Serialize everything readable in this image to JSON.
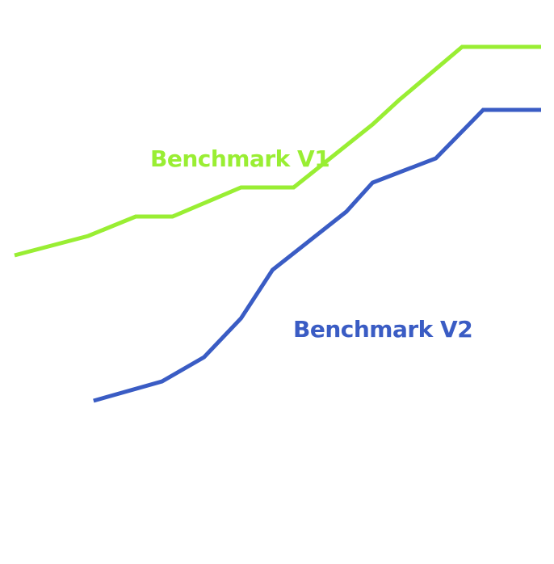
{
  "chart_data": {
    "type": "line",
    "title": "",
    "xlabel": "",
    "ylabel": "",
    "xlim": [
      0,
      100
    ],
    "ylim": [
      0,
      100
    ],
    "grid": false,
    "legend": "inline labels",
    "series": [
      {
        "name": "Benchmark V1",
        "color": "#99ee33",
        "points": [
          [
            0,
            49
          ],
          [
            14,
            53
          ],
          [
            23,
            57
          ],
          [
            30,
            57
          ],
          [
            43,
            63
          ],
          [
            53,
            63
          ],
          [
            68,
            76
          ],
          [
            73,
            81
          ],
          [
            85,
            92
          ],
          [
            100,
            92
          ]
        ]
      },
      {
        "name": "Benchmark V2",
        "color": "#3a5cc4",
        "points": [
          [
            15,
            19
          ],
          [
            28,
            23
          ],
          [
            36,
            28
          ],
          [
            43,
            36
          ],
          [
            49,
            46
          ],
          [
            63,
            58
          ],
          [
            68,
            64
          ],
          [
            80,
            69
          ],
          [
            89,
            79
          ],
          [
            100,
            79
          ]
        ]
      }
    ]
  }
}
